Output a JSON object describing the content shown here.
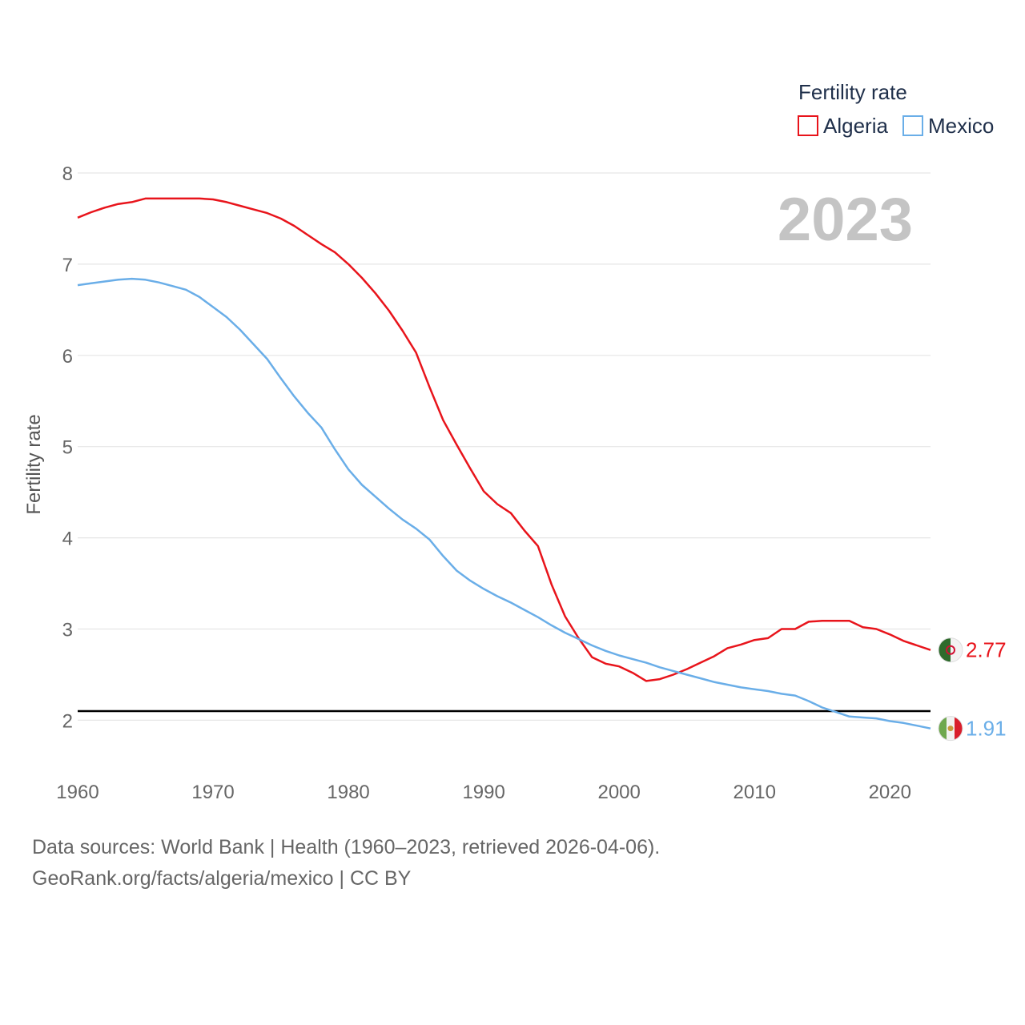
{
  "chart_data": {
    "type": "line",
    "year_label": "2023",
    "legend_title": "Fertility rate",
    "ylabel": "Fertility rate",
    "xlabel": "",
    "xlim": [
      1960,
      2023
    ],
    "ylim": [
      1.5,
      8.3
    ],
    "y_ticks": [
      2,
      3,
      4,
      5,
      6,
      7,
      8
    ],
    "x_ticks": [
      1960,
      1970,
      1980,
      1990,
      2000,
      2010,
      2020
    ],
    "reference_line": 2.1,
    "grid": true,
    "legend_position": "top-right",
    "x": [
      1960,
      1961,
      1962,
      1963,
      1964,
      1965,
      1966,
      1967,
      1968,
      1969,
      1970,
      1971,
      1972,
      1973,
      1974,
      1975,
      1976,
      1977,
      1978,
      1979,
      1980,
      1981,
      1982,
      1983,
      1984,
      1985,
      1986,
      1987,
      1988,
      1989,
      1990,
      1991,
      1992,
      1993,
      1994,
      1995,
      1996,
      1997,
      1998,
      1999,
      2000,
      2001,
      2002,
      2003,
      2004,
      2005,
      2006,
      2007,
      2008,
      2009,
      2010,
      2011,
      2012,
      2013,
      2014,
      2015,
      2016,
      2017,
      2018,
      2019,
      2020,
      2021,
      2022,
      2023
    ],
    "series": [
      {
        "name": "Algeria",
        "color": "#e8141b",
        "end_label": "2.77",
        "flag": "algeria-flag",
        "values": [
          7.51,
          7.57,
          7.62,
          7.66,
          7.68,
          7.72,
          7.72,
          7.72,
          7.72,
          7.72,
          7.71,
          7.68,
          7.64,
          7.6,
          7.56,
          7.5,
          7.42,
          7.32,
          7.22,
          7.13,
          7.0,
          6.85,
          6.68,
          6.49,
          6.27,
          6.03,
          5.65,
          5.29,
          5.02,
          4.76,
          4.51,
          4.37,
          4.27,
          4.08,
          3.91,
          3.49,
          3.14,
          2.9,
          2.69,
          2.62,
          2.59,
          2.52,
          2.43,
          2.45,
          2.5,
          2.56,
          2.63,
          2.7,
          2.79,
          2.83,
          2.88,
          2.9,
          3.0,
          3.0,
          3.08,
          3.09,
          3.09,
          3.09,
          3.02,
          3.0,
          2.94,
          2.87,
          2.82,
          2.77
        ]
      },
      {
        "name": "Mexico",
        "color": "#6aaee8",
        "end_label": "1.91",
        "flag": "mexico-flag",
        "values": [
          6.77,
          6.79,
          6.81,
          6.83,
          6.84,
          6.83,
          6.8,
          6.76,
          6.72,
          6.64,
          6.53,
          6.42,
          6.28,
          6.12,
          5.96,
          5.75,
          5.55,
          5.37,
          5.21,
          4.97,
          4.75,
          4.58,
          4.45,
          4.32,
          4.2,
          4.1,
          3.98,
          3.8,
          3.64,
          3.53,
          3.44,
          3.36,
          3.29,
          3.21,
          3.13,
          3.04,
          2.96,
          2.89,
          2.82,
          2.76,
          2.71,
          2.67,
          2.63,
          2.58,
          2.54,
          2.5,
          2.46,
          2.42,
          2.39,
          2.36,
          2.34,
          2.32,
          2.29,
          2.27,
          2.21,
          2.14,
          2.09,
          2.04,
          2.03,
          2.02,
          1.99,
          1.97,
          1.94,
          1.91
        ]
      }
    ]
  },
  "source": {
    "line1": "Data sources: World Bank | Health (1960–2023, retrieved 2026-04-06).",
    "line2": "GeoRank.org/facts/algeria/mexico | CC BY"
  }
}
